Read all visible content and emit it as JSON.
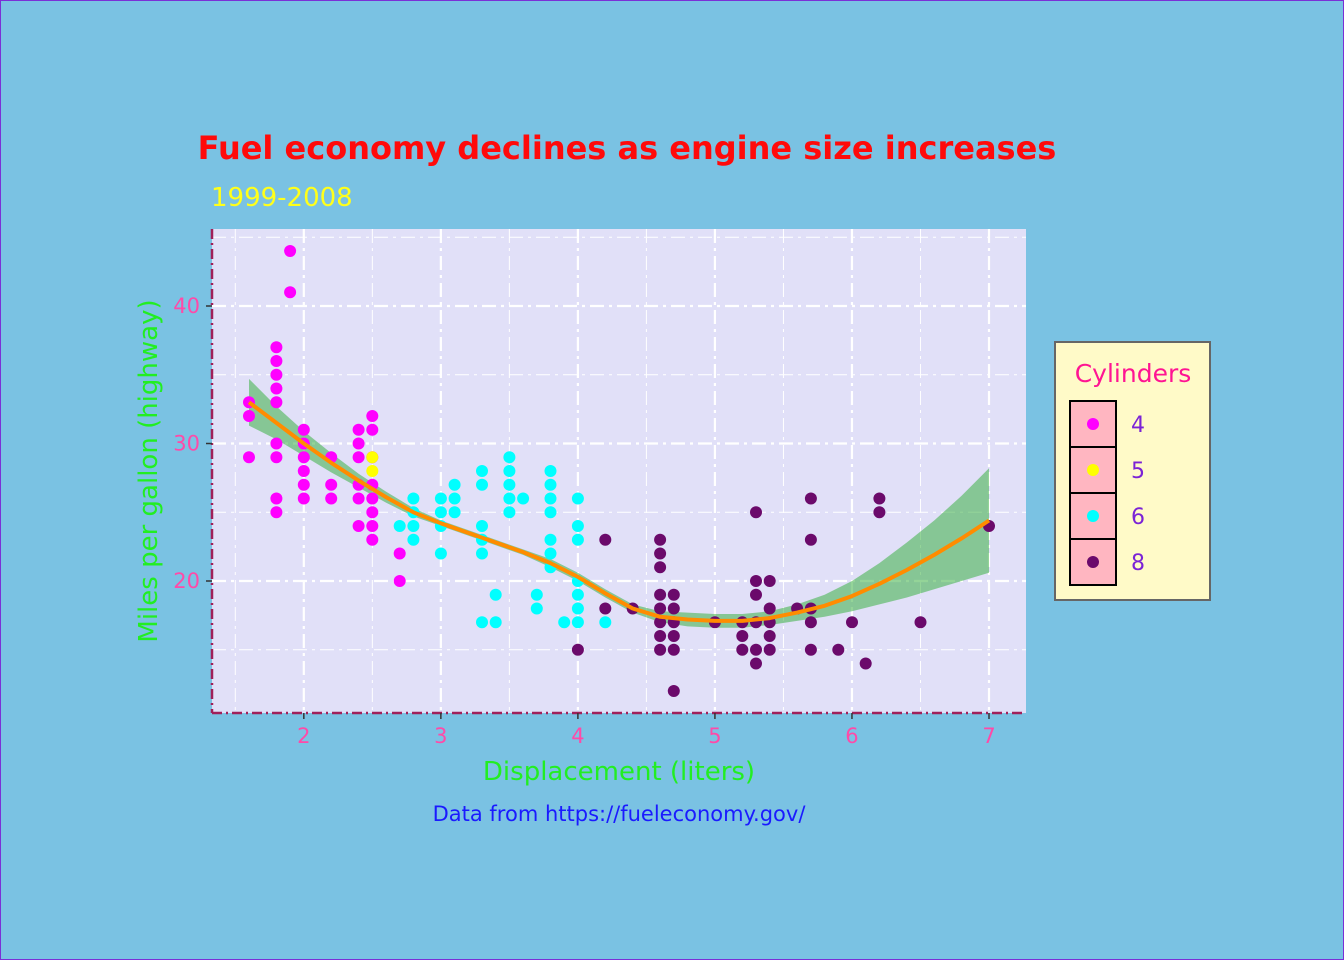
{
  "chart_data": {
    "type": "scatter",
    "title": "Fuel economy declines as engine size increases",
    "subtitle": "1999-2008",
    "caption": "Data from https://fueleconomy.gov/",
    "xlabel": "Displacement (liters)",
    "ylabel": "Miles per gallon (highway)",
    "xlim": [
      1.33,
      7.27
    ],
    "ylim": [
      10.4,
      45.6
    ],
    "xticks": [
      2,
      3,
      4,
      5,
      6,
      7
    ],
    "yticks": [
      20,
      30,
      40
    ],
    "grid": true,
    "legend": {
      "title": "Cylinders",
      "position": "right"
    },
    "colors": {
      "4": "#ff00ff",
      "5": "#ffff00",
      "6": "#00ffff",
      "8": "#6b0a6b",
      "smooth_line": "#ff8c00",
      "smooth_band": "#3cb043",
      "panel": "#e1e0f8"
    },
    "series": [
      {
        "name": "4",
        "color": "#ff00ff",
        "points": [
          [
            1.6,
            33
          ],
          [
            1.6,
            32
          ],
          [
            1.6,
            29
          ],
          [
            1.8,
            37
          ],
          [
            1.8,
            36
          ],
          [
            1.8,
            35
          ],
          [
            1.8,
            34
          ],
          [
            1.8,
            33
          ],
          [
            1.8,
            30
          ],
          [
            1.8,
            29
          ],
          [
            1.8,
            26
          ],
          [
            1.8,
            25
          ],
          [
            1.9,
            44
          ],
          [
            1.9,
            41
          ],
          [
            2.0,
            31
          ],
          [
            2.0,
            30
          ],
          [
            2.0,
            29
          ],
          [
            2.0,
            28
          ],
          [
            2.0,
            27
          ],
          [
            2.0,
            26
          ],
          [
            2.2,
            29
          ],
          [
            2.2,
            27
          ],
          [
            2.2,
            26
          ],
          [
            2.4,
            31
          ],
          [
            2.4,
            30
          ],
          [
            2.4,
            29
          ],
          [
            2.4,
            27
          ],
          [
            2.4,
            26
          ],
          [
            2.4,
            24
          ],
          [
            2.5,
            32
          ],
          [
            2.5,
            31
          ],
          [
            2.5,
            29
          ],
          [
            2.5,
            27
          ],
          [
            2.5,
            26
          ],
          [
            2.5,
            25
          ],
          [
            2.5,
            24
          ],
          [
            2.5,
            23
          ],
          [
            2.7,
            22
          ],
          [
            2.7,
            20
          ]
        ]
      },
      {
        "name": "5",
        "color": "#ffff00",
        "points": [
          [
            2.5,
            29
          ],
          [
            2.5,
            28
          ]
        ]
      },
      {
        "name": "6",
        "color": "#00ffff",
        "points": [
          [
            2.7,
            24
          ],
          [
            2.8,
            26
          ],
          [
            2.8,
            25
          ],
          [
            2.8,
            24
          ],
          [
            2.8,
            23
          ],
          [
            3.0,
            26
          ],
          [
            3.0,
            25
          ],
          [
            3.0,
            24
          ],
          [
            3.0,
            22
          ],
          [
            3.1,
            27
          ],
          [
            3.1,
            26
          ],
          [
            3.1,
            25
          ],
          [
            3.3,
            28
          ],
          [
            3.3,
            27
          ],
          [
            3.3,
            24
          ],
          [
            3.3,
            23
          ],
          [
            3.3,
            22
          ],
          [
            3.3,
            17
          ],
          [
            3.4,
            19
          ],
          [
            3.4,
            17
          ],
          [
            3.5,
            29
          ],
          [
            3.5,
            28
          ],
          [
            3.5,
            27
          ],
          [
            3.5,
            26
          ],
          [
            3.5,
            25
          ],
          [
            3.6,
            26
          ],
          [
            3.7,
            19
          ],
          [
            3.7,
            18
          ],
          [
            3.8,
            28
          ],
          [
            3.8,
            27
          ],
          [
            3.8,
            26
          ],
          [
            3.8,
            25
          ],
          [
            3.8,
            23
          ],
          [
            3.8,
            22
          ],
          [
            3.8,
            21
          ],
          [
            3.9,
            17
          ],
          [
            4.0,
            26
          ],
          [
            4.0,
            24
          ],
          [
            4.0,
            23
          ],
          [
            4.0,
            20
          ],
          [
            4.0,
            19
          ],
          [
            4.0,
            18
          ],
          [
            4.0,
            17
          ],
          [
            4.2,
            17
          ]
        ]
      },
      {
        "name": "8",
        "color": "#6b0a6b",
        "points": [
          [
            4.0,
            15
          ],
          [
            4.2,
            23
          ],
          [
            4.2,
            18
          ],
          [
            4.4,
            18
          ],
          [
            4.6,
            23
          ],
          [
            4.6,
            22
          ],
          [
            4.6,
            21
          ],
          [
            4.6,
            19
          ],
          [
            4.6,
            18
          ],
          [
            4.6,
            17
          ],
          [
            4.6,
            16
          ],
          [
            4.6,
            15
          ],
          [
            4.7,
            19
          ],
          [
            4.7,
            18
          ],
          [
            4.7,
            17
          ],
          [
            4.7,
            16
          ],
          [
            4.7,
            15
          ],
          [
            4.7,
            12
          ],
          [
            5.0,
            17
          ],
          [
            5.2,
            17
          ],
          [
            5.2,
            16
          ],
          [
            5.2,
            15
          ],
          [
            5.3,
            25
          ],
          [
            5.3,
            20
          ],
          [
            5.3,
            19
          ],
          [
            5.3,
            17
          ],
          [
            5.3,
            15
          ],
          [
            5.3,
            14
          ],
          [
            5.4,
            20
          ],
          [
            5.4,
            18
          ],
          [
            5.4,
            17
          ],
          [
            5.4,
            16
          ],
          [
            5.4,
            15
          ],
          [
            5.6,
            18
          ],
          [
            5.7,
            26
          ],
          [
            5.7,
            23
          ],
          [
            5.7,
            18
          ],
          [
            5.7,
            17
          ],
          [
            5.7,
            15
          ],
          [
            5.9,
            15
          ],
          [
            6.0,
            17
          ],
          [
            6.1,
            14
          ],
          [
            6.2,
            26
          ],
          [
            6.2,
            25
          ],
          [
            6.5,
            17
          ],
          [
            7.0,
            24
          ]
        ]
      }
    ],
    "smooth": {
      "x": [
        1.6,
        1.8,
        2.0,
        2.2,
        2.4,
        2.6,
        2.8,
        3.0,
        3.2,
        3.4,
        3.6,
        3.8,
        4.0,
        4.2,
        4.4,
        4.6,
        4.8,
        5.0,
        5.2,
        5.4,
        5.6,
        5.8,
        6.0,
        6.2,
        6.4,
        6.6,
        6.8,
        7.0
      ],
      "y": [
        33.0,
        31.5,
        30.0,
        28.6,
        27.3,
        26.1,
        25.0,
        24.2,
        23.5,
        22.8,
        22.1,
        21.3,
        20.3,
        19.1,
        18.0,
        17.4,
        17.2,
        17.1,
        17.1,
        17.3,
        17.7,
        18.2,
        18.9,
        19.8,
        20.8,
        21.9,
        23.1,
        24.4
      ],
      "lower": [
        31.3,
        30.3,
        29.1,
        27.9,
        26.8,
        25.7,
        24.7,
        24.0,
        23.3,
        22.6,
        21.9,
        21.0,
        20.0,
        18.8,
        17.7,
        17.0,
        16.7,
        16.6,
        16.6,
        16.8,
        17.1,
        17.4,
        17.8,
        18.3,
        18.8,
        19.4,
        20.0,
        20.6
      ],
      "upper": [
        34.7,
        32.7,
        30.9,
        29.3,
        27.8,
        26.5,
        25.3,
        24.4,
        23.7,
        23.0,
        22.3,
        21.6,
        20.6,
        19.4,
        18.3,
        17.8,
        17.7,
        17.6,
        17.6,
        17.8,
        18.3,
        19.0,
        20.0,
        21.3,
        22.8,
        24.4,
        26.2,
        28.2
      ]
    }
  }
}
